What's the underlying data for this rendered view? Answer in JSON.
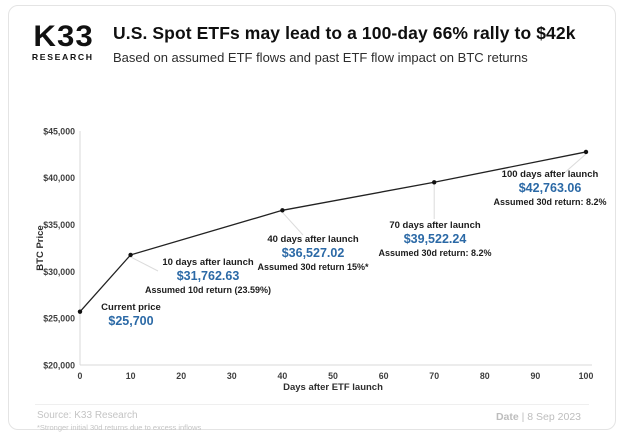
{
  "header": {
    "logo_line1": "K33",
    "logo_line2": "RESEARCH",
    "title": "U.S. Spot ETFs may lead to a 100-day 66% rally to $42k",
    "subtitle": "Based on assumed ETF flows and past ETF flow impact on BTC returns"
  },
  "chart_data": {
    "type": "line",
    "title": "U.S. Spot ETFs may lead to a 100-day 66% rally to $42k",
    "xlabel": "Days after ETF launch",
    "ylabel": "BTC Price",
    "x": [
      0,
      10,
      40,
      70,
      100
    ],
    "values": [
      25700,
      31762.63,
      36527.02,
      39522.24,
      42763.06
    ],
    "xlim": [
      0,
      100
    ],
    "ylim": [
      20000,
      45000
    ],
    "grid": false,
    "legend": "none",
    "line_color": "#222222",
    "accent_color": "#2b69a6",
    "xticks": [
      "0",
      "10",
      "20",
      "30",
      "40",
      "50",
      "60",
      "70",
      "80",
      "90",
      "100"
    ],
    "yticks": [
      "$45,000",
      "$40,000",
      "$35,000",
      "$30,000",
      "$25,000",
      "$20,000"
    ],
    "annotations": [
      {
        "label": "Current price",
        "value": "$25,700",
        "detail": ""
      },
      {
        "label": "10 days after launch",
        "value": "$31,762.63",
        "detail": "Assumed 10d return (23.59%)"
      },
      {
        "label": "40 days after launch",
        "value": "$36,527.02",
        "detail": "Assumed 30d return 15%*"
      },
      {
        "label": "70 days after launch",
        "value": "$39,522.24",
        "detail": "Assumed 30d return: 8.2%"
      },
      {
        "label": "100 days after launch",
        "value": "$42,763.06",
        "detail": "Assumed 30d return: 8.2%"
      }
    ]
  },
  "footer": {
    "source": "Source: K33 Research",
    "footnote": "*Stronger initial 30d returns due to excess inflows",
    "date_label": "Date",
    "date_sep": "|",
    "date_value": "8 Sep 2023"
  }
}
